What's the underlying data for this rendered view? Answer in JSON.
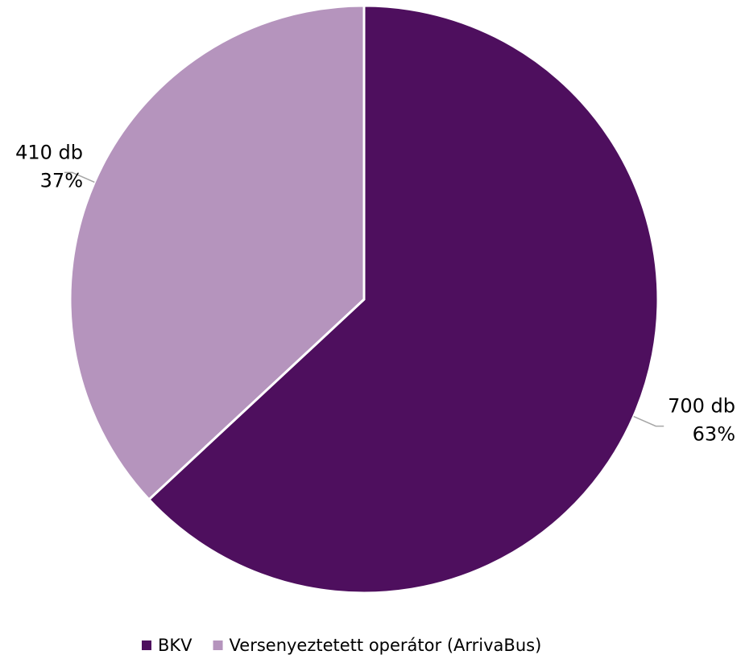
{
  "chart_data": {
    "type": "pie",
    "categories": [
      "BKV",
      "Versenyeztetett operátor (ArrivaBus)"
    ],
    "values": [
      700,
      410
    ],
    "value_labels": [
      "700 db",
      "410 db"
    ],
    "percent_labels": [
      "63%",
      "37%"
    ],
    "colors": [
      "#4e0f5e",
      "#b594bd"
    ],
    "legend": "bottom"
  }
}
